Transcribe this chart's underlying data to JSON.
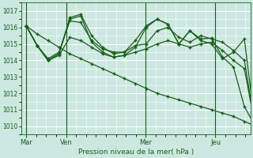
{
  "bg_color": "#cce8e0",
  "grid_color": "#ffffff",
  "line_color": "#1a5c1a",
  "title": "Pression niveau de la mer( hPa )",
  "ylim": [
    1009.5,
    1017.5
  ],
  "yticks": [
    1010,
    1011,
    1012,
    1013,
    1014,
    1015,
    1016,
    1017
  ],
  "day_labels": [
    "Mar",
    "Ven",
    "Mer",
    "Jeu"
  ],
  "day_positions": [
    0,
    4,
    12,
    19
  ],
  "xlim": [
    -0.5,
    22.5
  ],
  "series1": [
    1016.1,
    1014.9,
    1014.0,
    1014.4,
    1016.5,
    1016.7,
    1015.1,
    1014.5,
    1014.2,
    1014.3,
    1014.8,
    1016.0,
    1016.5,
    1016.2,
    1015.0,
    1015.8,
    1015.3,
    1015.35,
    1014.2,
    1013.6,
    1011.2,
    1010.0
  ],
  "series2": [
    1016.1,
    1014.9,
    1014.1,
    1014.5,
    1016.4,
    1016.3,
    1015.2,
    1014.7,
    1014.5,
    1014.5,
    1014.9,
    1015.0,
    1015.8,
    1016.0,
    1015.4,
    1015.1,
    1015.5,
    1015.3,
    1015.1,
    1014.6,
    1014.0,
    1010.0
  ],
  "series3": [
    1016.1,
    1014.9,
    1014.0,
    1014.3,
    1015.4,
    1015.2,
    1014.8,
    1014.4,
    1014.2,
    1014.3,
    1014.5,
    1014.7,
    1015.0,
    1015.2,
    1015.0,
    1014.8,
    1015.0,
    1015.1,
    1014.6,
    1014.0,
    1013.5,
    1010.0
  ],
  "series4": [
    1016.1,
    1014.9,
    1014.0,
    1014.4,
    1016.6,
    1016.8,
    1015.5,
    1014.8,
    1014.4,
    1014.5,
    1015.2,
    1016.1,
    1016.5,
    1016.2,
    1015.0,
    1015.8,
    1015.2,
    1015.0,
    1014.1,
    1014.5,
    1015.3,
    1010.0
  ],
  "series5": [
    1016.1,
    1015.6,
    1015.2,
    1014.8,
    1014.4,
    1014.1,
    1013.8,
    1013.5,
    1013.2,
    1012.9,
    1012.6,
    1012.3,
    1012.0,
    1011.8,
    1011.6,
    1011.4,
    1011.2,
    1011.0,
    1010.8,
    1010.6,
    1010.3,
    1010.0
  ]
}
